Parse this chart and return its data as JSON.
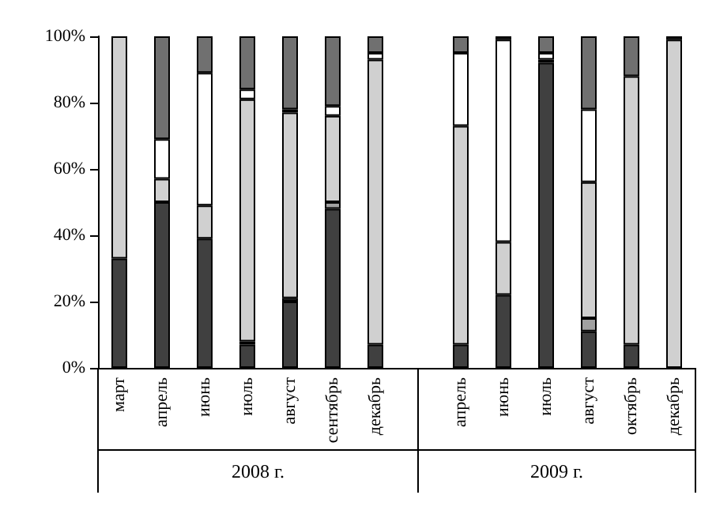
{
  "chart_data": {
    "type": "bar",
    "stacked": true,
    "categories": [
      "март",
      "апрель",
      "июнь",
      "июль",
      "август",
      "сентябрь",
      "декабрь",
      null,
      "апрель",
      "июнь",
      "июль",
      "август",
      "октябрь",
      "декабрь"
    ],
    "series": [
      {
        "color": "#404040",
        "values": [
          33,
          50,
          39,
          7,
          20,
          48,
          7,
          null,
          7,
          22,
          92,
          11,
          7,
          0
        ]
      },
      {
        "color": "#a0a0a0",
        "values": [
          0,
          0,
          0,
          1,
          1,
          2,
          0,
          null,
          0,
          0,
          1,
          4,
          0,
          0
        ]
      },
      {
        "color": "#d0d0d0",
        "values": [
          67,
          7,
          10,
          73,
          56,
          26,
          86,
          null,
          66,
          16,
          0,
          41,
          81,
          99
        ]
      },
      {
        "color": "#ffffff",
        "values": [
          0,
          12,
          40,
          3,
          1,
          3,
          2,
          null,
          22,
          61,
          2,
          22,
          0,
          0
        ]
      },
      {
        "color": "#707070",
        "values": [
          0,
          31,
          11,
          16,
          22,
          21,
          5,
          null,
          5,
          1,
          5,
          22,
          12,
          1
        ]
      }
    ],
    "ylim": [
      0,
      100
    ],
    "yticks": [
      {
        "value": 0,
        "label": "0%"
      },
      {
        "value": 20,
        "label": "20%"
      },
      {
        "value": 40,
        "label": "40%"
      },
      {
        "value": 60,
        "label": "60%"
      },
      {
        "value": 80,
        "label": "80%"
      },
      {
        "value": 100,
        "label": "100%"
      }
    ],
    "grid": false,
    "annotations": [
      "2008 г.",
      "2009 г."
    ]
  }
}
